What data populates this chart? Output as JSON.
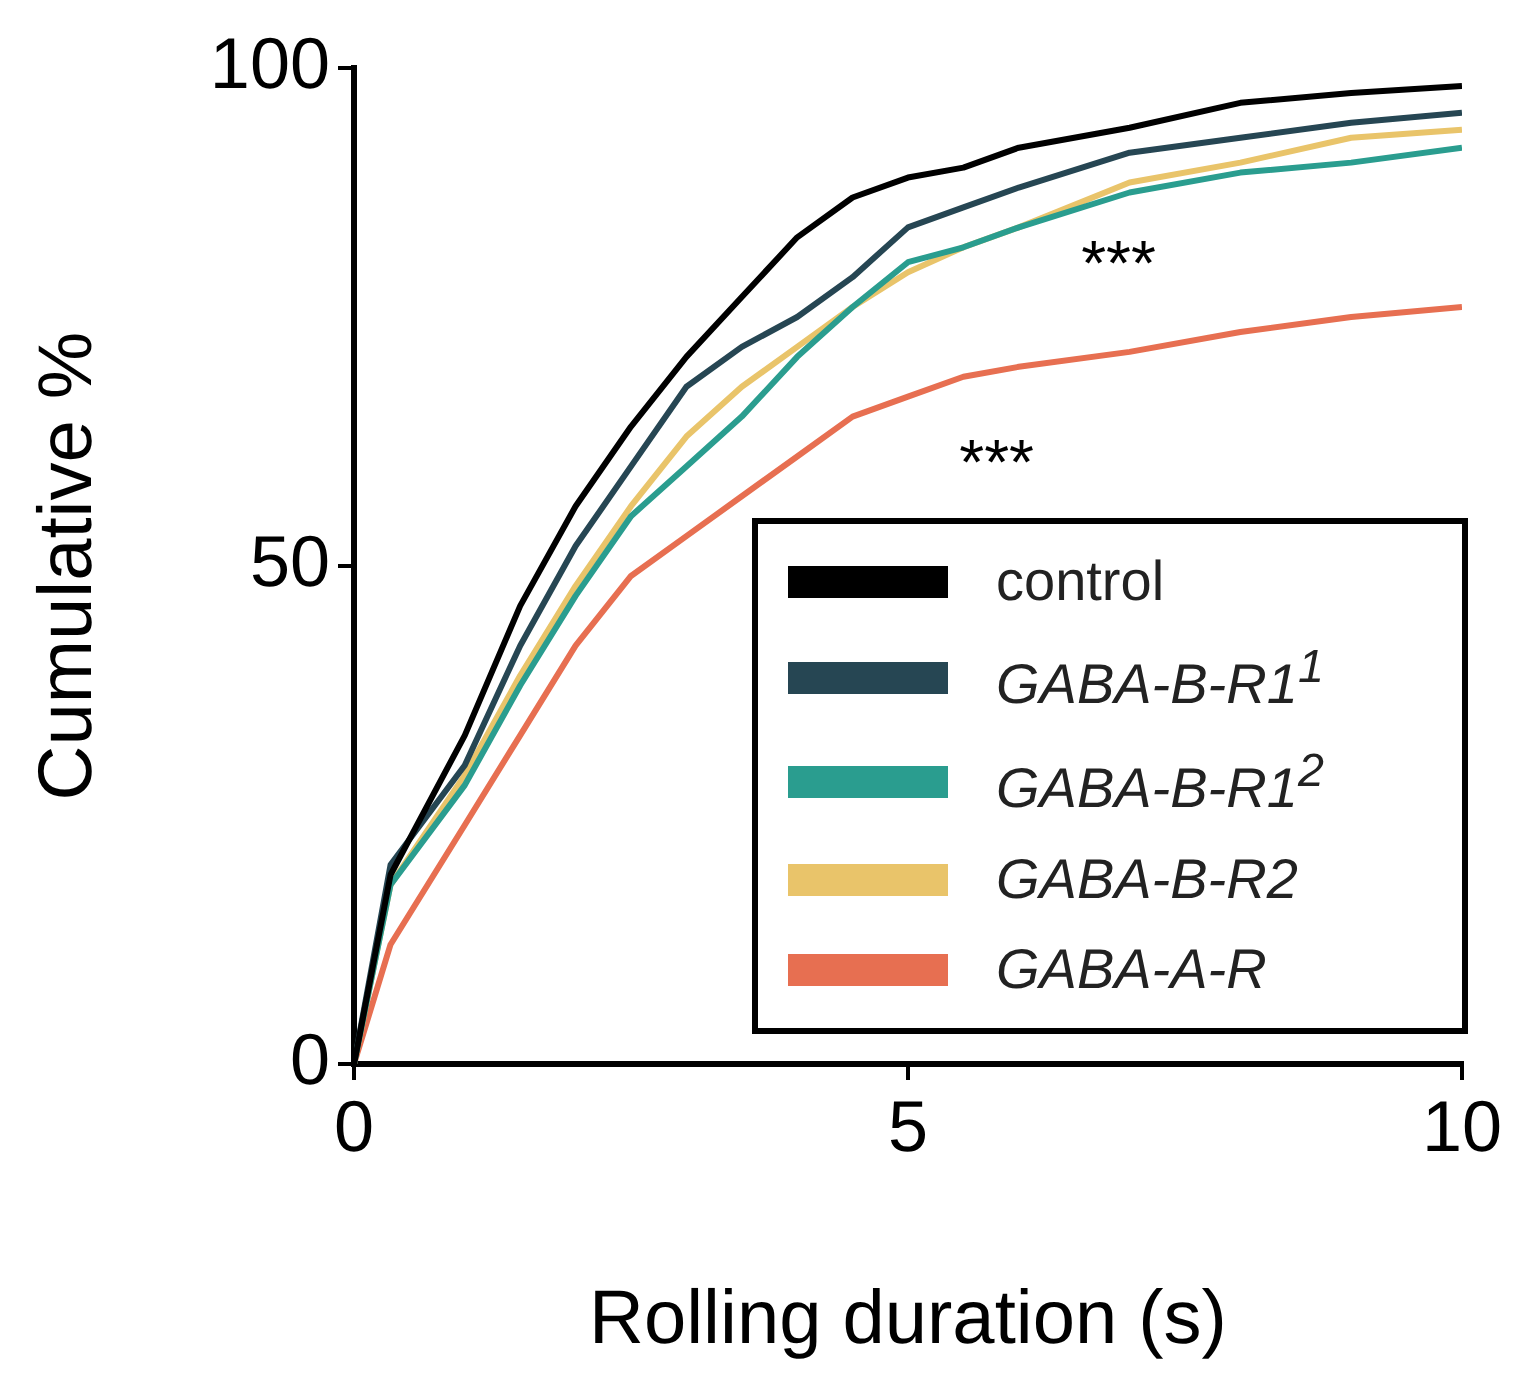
{
  "chart_data": {
    "type": "line",
    "xlabel": "Rolling duration (s)",
    "ylabel": "Cumulative %",
    "x": [
      0,
      0.33,
      1,
      1.5,
      2,
      2.5,
      3,
      3.5,
      4,
      4.5,
      5,
      5.5,
      6,
      7,
      8,
      9,
      10
    ],
    "series": [
      {
        "name": "control",
        "color": "#000000",
        "values": [
          0,
          19,
          33,
          46,
          56,
          64,
          71,
          77,
          83,
          87,
          89,
          90,
          92,
          94,
          96.5,
          97.5,
          98.2
        ]
      },
      {
        "name": "GABA-B-R1$^{1}$",
        "color": "#264653",
        "values": [
          0,
          20,
          30,
          42,
          52,
          60,
          68,
          72,
          75,
          79,
          84,
          86,
          88,
          91.5,
          93,
          94.5,
          95.5
        ]
      },
      {
        "name": "GABA-B-R1$^{2}$",
        "color": "#2a9d8f",
        "values": [
          0,
          18,
          28,
          38,
          47,
          55,
          60,
          65,
          71,
          76,
          80.5,
          82,
          84,
          87.5,
          89.5,
          90.5,
          92
        ]
      },
      {
        "name": "GABA-B-R2",
        "color": "#e9c46a",
        "values": [
          0,
          18,
          29,
          39,
          48,
          56,
          63,
          68,
          72,
          76,
          79.5,
          82,
          84,
          88.5,
          90.5,
          93,
          93.8
        ]
      },
      {
        "name": "GABA-A-R",
        "color": "#e76f51",
        "values": [
          0,
          12,
          24,
          33,
          42,
          49,
          53,
          57,
          61,
          65,
          67,
          69,
          70,
          71.5,
          73.5,
          75,
          76
        ]
      }
    ],
    "xlim": [
      0,
      10
    ],
    "xticks": [
      0,
      5,
      10
    ],
    "ylim": [
      0,
      100
    ],
    "yticks": [
      0,
      50,
      100
    ],
    "grid": false,
    "legend": "bottom right",
    "marker": "none",
    "line_style": "solid",
    "annotations": [
      "***",
      "***"
    ]
  }
}
